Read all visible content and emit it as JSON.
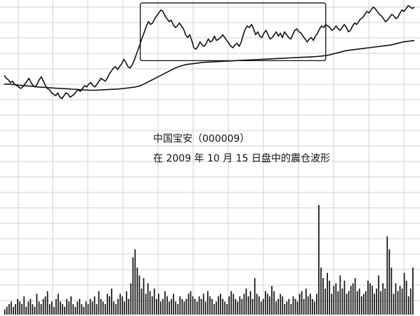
{
  "caption": {
    "title": "中国宝安（000009）",
    "description": "在 2009 年 10 月 15 日盘中的震仓波形"
  },
  "chart_data": {
    "type": "line",
    "title": "",
    "xlabel": "",
    "ylabel": "",
    "grid": true,
    "line_color": "#111111",
    "grid_color": "#d0d0d0",
    "price_series": {
      "name": "",
      "values": [
        0.52,
        0.5,
        0.49,
        0.47,
        0.48,
        0.46,
        0.45,
        0.44,
        0.43,
        0.44,
        0.46,
        0.48,
        0.5,
        0.47,
        0.45,
        0.44,
        0.46,
        0.49,
        0.51,
        0.48,
        0.45,
        0.43,
        0.42,
        0.4,
        0.39,
        0.38,
        0.4,
        0.37,
        0.36,
        0.38,
        0.4,
        0.39,
        0.37,
        0.38,
        0.39,
        0.41,
        0.42,
        0.41,
        0.43,
        0.45,
        0.44,
        0.46,
        0.47,
        0.45,
        0.44,
        0.46,
        0.48,
        0.5,
        0.49,
        0.48,
        0.5,
        0.53,
        0.55,
        0.57,
        0.58,
        0.56,
        0.58,
        0.6,
        0.63,
        0.61,
        0.58,
        0.57,
        0.59,
        0.62,
        0.66,
        0.7,
        0.74,
        0.78,
        0.82,
        0.86,
        0.89,
        0.87,
        0.88,
        0.91,
        0.93,
        0.95,
        0.97,
        0.96,
        0.93,
        0.91,
        0.89,
        0.9,
        0.87,
        0.85,
        0.86,
        0.88,
        0.86,
        0.84,
        0.8,
        0.78,
        0.8,
        0.76,
        0.71,
        0.7,
        0.72,
        0.75,
        0.73,
        0.72,
        0.74,
        0.77,
        0.75,
        0.76,
        0.79,
        0.76,
        0.77,
        0.78,
        0.8,
        0.78,
        0.76,
        0.74,
        0.72,
        0.71,
        0.73,
        0.74,
        0.72,
        0.75,
        0.8,
        0.84,
        0.86,
        0.85,
        0.87,
        0.84,
        0.8,
        0.82,
        0.79,
        0.78,
        0.81,
        0.83,
        0.8,
        0.77,
        0.78,
        0.8,
        0.82,
        0.79,
        0.81,
        0.78,
        0.82,
        0.8,
        0.78,
        0.77,
        0.8,
        0.83,
        0.84,
        0.82,
        0.81,
        0.79,
        0.77,
        0.75,
        0.77,
        0.78,
        0.76,
        0.79,
        0.81,
        0.84,
        0.86,
        0.85,
        0.87,
        0.86,
        0.85,
        0.83,
        0.84,
        0.86,
        0.84,
        0.83,
        0.85,
        0.87,
        0.85,
        0.82,
        0.83,
        0.86,
        0.88,
        0.87,
        0.89,
        0.91,
        0.92,
        0.94,
        0.96,
        0.95,
        0.97,
        0.99,
        0.98,
        0.96,
        0.94,
        0.93,
        0.91,
        0.89,
        0.9,
        0.92,
        0.94,
        0.93,
        0.91,
        0.92,
        0.95,
        0.97,
        0.96,
        0.98,
        1.0,
        0.99,
        0.98,
        0.99
      ]
    },
    "ma_series": {
      "name": "",
      "values": [
        0.46,
        0.46,
        0.455,
        0.45,
        0.448,
        0.445,
        0.44,
        0.438,
        0.435,
        0.432,
        0.43,
        0.428,
        0.425,
        0.423,
        0.42,
        0.418,
        0.418,
        0.42,
        0.422,
        0.424,
        0.426,
        0.43,
        0.435,
        0.44,
        0.45,
        0.47,
        0.49,
        0.51,
        0.53,
        0.55,
        0.57,
        0.585,
        0.595,
        0.6,
        0.605,
        0.61,
        0.612,
        0.614,
        0.616,
        0.618,
        0.62,
        0.622,
        0.624,
        0.626,
        0.628,
        0.63,
        0.632,
        0.634,
        0.636,
        0.638,
        0.64,
        0.642,
        0.644,
        0.646,
        0.648,
        0.65,
        0.654,
        0.66,
        0.67,
        0.68,
        0.69,
        0.695,
        0.7,
        0.705,
        0.71,
        0.715,
        0.72,
        0.725,
        0.73,
        0.74,
        0.75,
        0.755,
        0.76
      ]
    },
    "volume": {
      "values": [
        2,
        3,
        4,
        5,
        3,
        4,
        6,
        5,
        4,
        7,
        3,
        5,
        6,
        4,
        3,
        8,
        5,
        4,
        6,
        7,
        9,
        4,
        5,
        3,
        6,
        8,
        5,
        4,
        3,
        6,
        5,
        7,
        4,
        3,
        5,
        6,
        4,
        3,
        5,
        4,
        6,
        5,
        7,
        4,
        9,
        6,
        5,
        4,
        8,
        7,
        10,
        5,
        4,
        6,
        8,
        7,
        5,
        9,
        6,
        12,
        22,
        25,
        18,
        15,
        10,
        14,
        8,
        12,
        9,
        7,
        10,
        6,
        8,
        5,
        6,
        9,
        7,
        5,
        6,
        8,
        5,
        4,
        7,
        6,
        5,
        6,
        8,
        9,
        7,
        6,
        5,
        7,
        6,
        8,
        5,
        9,
        7,
        6,
        4,
        5,
        7,
        8,
        6,
        5,
        4,
        7,
        9,
        8,
        6,
        5,
        7,
        6,
        8,
        10,
        7,
        9,
        6,
        14,
        8,
        7,
        5,
        6,
        9,
        8,
        7,
        11,
        9,
        5,
        6,
        8,
        7,
        4,
        5,
        6,
        4,
        7,
        6,
        5,
        8,
        9,
        6,
        10,
        7,
        8,
        6,
        5,
        8,
        42,
        18,
        14,
        10,
        16,
        13,
        8,
        11,
        12,
        9,
        15,
        10,
        13,
        8,
        9,
        11,
        12,
        14,
        9,
        10,
        7,
        8,
        9,
        13,
        12,
        11,
        8,
        10,
        15,
        9,
        12,
        10,
        30,
        25,
        18,
        8,
        12,
        9,
        11,
        10,
        16,
        13,
        7,
        10,
        18
      ]
    },
    "annotation_box": {
      "from_index": 66,
      "to_index": 156
    }
  }
}
